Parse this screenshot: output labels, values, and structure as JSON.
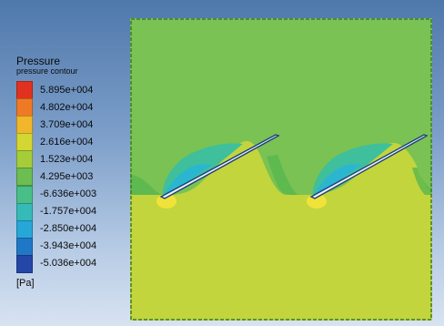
{
  "chart_data": {
    "type": "heatmap",
    "title": "Pressure",
    "subtitle": "pressure contour",
    "unit": "[Pa]",
    "legend_position": "left",
    "levels": [
      {
        "label": "5.895e+004",
        "value": 58950,
        "color": "#e0321e"
      },
      {
        "label": "4.802e+004",
        "value": 48020,
        "color": "#ef7a26"
      },
      {
        "label": "3.709e+004",
        "value": 37090,
        "color": "#f1b62c"
      },
      {
        "label": "2.616e+004",
        "value": 26160,
        "color": "#d4d632"
      },
      {
        "label": "1.523e+004",
        "value": 15230,
        "color": "#a6cc3a"
      },
      {
        "label": "4.295e+003",
        "value": 4295,
        "color": "#6cbd52"
      },
      {
        "label": "-6.636e+003",
        "value": -6636,
        "color": "#48bf86"
      },
      {
        "label": "-1.757e+004",
        "value": -17570,
        "color": "#36bab8"
      },
      {
        "label": "-2.850e+004",
        "value": -28500,
        "color": "#27a6d8"
      },
      {
        "label": "-3.943e+004",
        "value": -39430,
        "color": "#1f78c6"
      },
      {
        "label": "-5.036e+004",
        "value": -50360,
        "color": "#2446a6"
      }
    ]
  }
}
